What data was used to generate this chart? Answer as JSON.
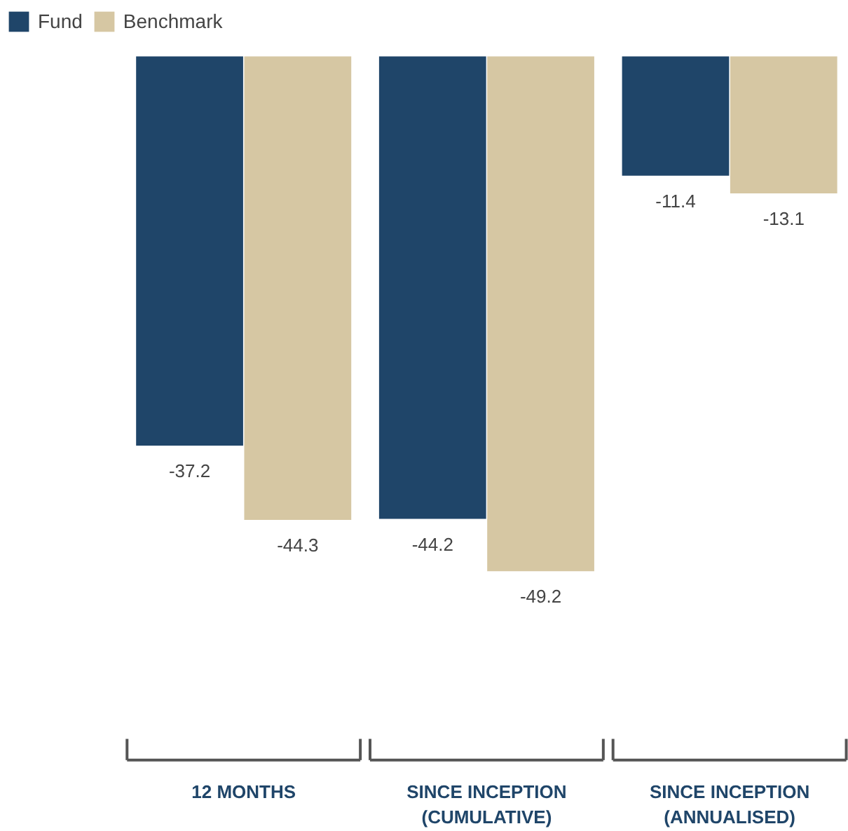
{
  "chart_data": {
    "type": "bar",
    "categories": [
      "12 MONTHS",
      "SINCE INCEPTION\n(CUMULATIVE)",
      "SINCE INCEPTION\n(ANNUALISED)"
    ],
    "series": [
      {
        "name": "Fund",
        "color": "#1f4569",
        "values": [
          -37.2,
          -44.2,
          -11.4
        ]
      },
      {
        "name": "Benchmark",
        "color": "#d6c7a3",
        "values": [
          -44.3,
          -49.2,
          -13.1
        ]
      }
    ],
    "data_labels": true,
    "legend": "top left",
    "grid": false
  }
}
